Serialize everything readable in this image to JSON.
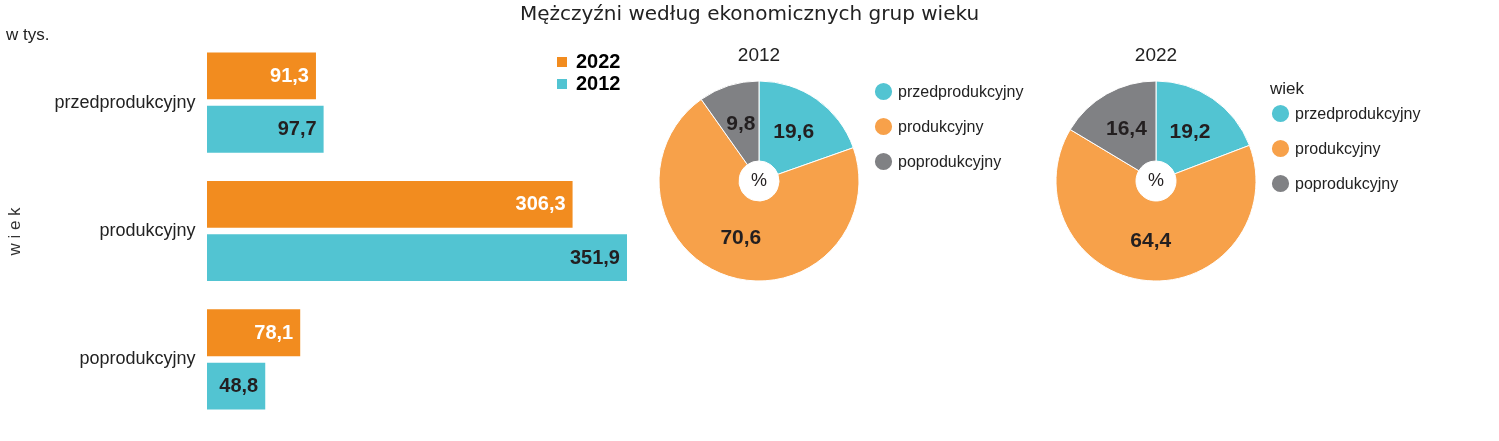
{
  "chart_data": [
    {
      "type": "bar",
      "orientation": "horizontal",
      "title": "Mężczyźni według ekonomicznych grup wieku",
      "ylabel": "w i e k",
      "annotations": [
        "w tys."
      ],
      "categories": [
        "przedprodukcyjny",
        "produkcyjny",
        "poprodukcyjny"
      ],
      "series": [
        {
          "name": "2022",
          "color": "#f28c1f",
          "values": [
            91.3,
            306.3,
            78.1
          ],
          "value_labels": [
            "91,3",
            "306,3",
            "78,1"
          ]
        },
        {
          "name": "2012",
          "color": "#52c4d2",
          "values": [
            97.7,
            351.9,
            48.8
          ],
          "value_labels": [
            "97,7",
            "351,9",
            "48,8"
          ]
        }
      ],
      "legend": "top right"
    },
    {
      "type": "donut",
      "title": "2012",
      "categories": [
        "przedprodukcyjny",
        "produkcyjny",
        "poprodukcyjny"
      ],
      "values": [
        19.6,
        70.6,
        9.8
      ],
      "colors": [
        "#52c4d2",
        "#f7a14a",
        "#808184"
      ],
      "value_labels": [
        "19,6",
        "70,6",
        "9,8"
      ],
      "annotations": [
        "%"
      ],
      "legend": "right"
    },
    {
      "type": "donut",
      "title": "2022",
      "categories": [
        "przedprodukcyjny",
        "produkcyjny",
        "poprodukcyjny"
      ],
      "values": [
        19.2,
        64.4,
        16.4
      ],
      "colors": [
        "#52c4d2",
        "#f7a14a",
        "#808184"
      ],
      "value_labels": [
        "19,2",
        "64,4",
        "16,4"
      ],
      "annotations": [
        "%"
      ],
      "legend": "right",
      "legend_title": "wiek"
    }
  ]
}
